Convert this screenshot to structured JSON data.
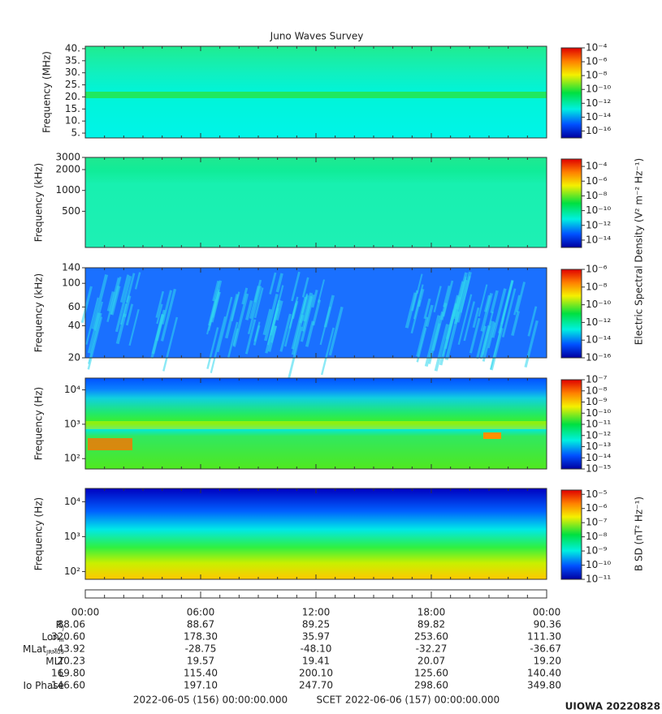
{
  "title": "Juno Waves Survey",
  "chart_data": [
    {
      "type": "heatmap",
      "ylabel": "Frequency (MHz)",
      "yscale": "linear",
      "ylim": [
        3,
        41
      ],
      "yticks": [
        {
          "value": 5,
          "label": "5."
        },
        {
          "value": 10,
          "label": "10."
        },
        {
          "value": 15,
          "label": "15."
        },
        {
          "value": 20,
          "label": "20."
        },
        {
          "value": 25,
          "label": "25."
        },
        {
          "value": 30,
          "label": "30."
        },
        {
          "value": 35,
          "label": "35."
        },
        {
          "value": 40,
          "label": "40."
        }
      ],
      "colorbar": {
        "scale": "log",
        "lim": [
          1e-17,
          0.0001
        ],
        "ticks": [
          {
            "value": 0.0001,
            "label": "10⁻⁴"
          },
          {
            "value": 1e-06,
            "label": "10⁻⁶"
          },
          {
            "value": 1e-08,
            "label": "10⁻⁸"
          },
          {
            "value": 1e-10,
            "label": "10⁻¹⁰"
          },
          {
            "value": 1e-12,
            "label": "10⁻¹²"
          },
          {
            "value": 1e-14,
            "label": "10⁻¹⁴"
          },
          {
            "value": 1e-16,
            "label": "10⁻¹⁶"
          }
        ]
      }
    },
    {
      "type": "heatmap",
      "ylabel": "Frequency (kHz)",
      "yscale": "log",
      "ylim": [
        150,
        3000
      ],
      "yticks": [
        500,
        1000,
        2000,
        3000
      ],
      "colorbar": {
        "scale": "log",
        "lim": [
          1e-15,
          0.001
        ],
        "label": "Electric Spectral Density (V² m⁻² Hz⁻¹)",
        "ticks": [
          {
            "value": 0.0001,
            "label": "10⁻⁴"
          },
          {
            "value": 1e-06,
            "label": "10⁻⁶"
          },
          {
            "value": 1e-08,
            "label": "10⁻⁸"
          },
          {
            "value": 1e-10,
            "label": "10⁻¹⁰"
          },
          {
            "value": 1e-12,
            "label": "10⁻¹²"
          },
          {
            "value": 1e-14,
            "label": "10⁻¹⁴"
          }
        ]
      }
    },
    {
      "type": "heatmap",
      "ylabel": "Frequency (kHz)",
      "yscale": "log",
      "ylim": [
        20,
        140
      ],
      "yticks": [
        20,
        40,
        60,
        100,
        140
      ],
      "colorbar": {
        "scale": "log",
        "lim": [
          1e-16,
          1e-06
        ],
        "ticks": [
          {
            "value": 1e-06,
            "label": "10⁻⁶"
          },
          {
            "value": 1e-08,
            "label": "10⁻⁸"
          },
          {
            "value": 1e-10,
            "label": "10⁻¹⁰"
          },
          {
            "value": 1e-12,
            "label": "10⁻¹²"
          },
          {
            "value": 1e-14,
            "label": "10⁻¹⁴"
          },
          {
            "value": 1e-16,
            "label": "10⁻¹⁶"
          }
        ]
      }
    },
    {
      "type": "heatmap",
      "ylabel": "Frequency (Hz)",
      "yscale": "log",
      "ylim": [
        50,
        22000
      ],
      "yticks": [
        {
          "value": 100,
          "label": "10²"
        },
        {
          "value": 1000,
          "label": "10³"
        },
        {
          "value": 10000,
          "label": "10⁴"
        }
      ],
      "colorbar": {
        "scale": "log",
        "lim": [
          1e-15,
          1e-07
        ],
        "ticks": [
          {
            "value": 1e-07,
            "label": "10⁻⁷"
          },
          {
            "value": 1e-08,
            "label": "10⁻⁸"
          },
          {
            "value": 1e-09,
            "label": "10⁻⁹"
          },
          {
            "value": 1e-10,
            "label": "10⁻¹⁰"
          },
          {
            "value": 1e-11,
            "label": "10⁻¹¹"
          },
          {
            "value": 1e-12,
            "label": "10⁻¹²"
          },
          {
            "value": 1e-13,
            "label": "10⁻¹³"
          },
          {
            "value": 1e-14,
            "label": "10⁻¹⁴"
          },
          {
            "value": 1e-15,
            "label": "10⁻¹⁵"
          }
        ]
      }
    },
    {
      "type": "heatmap",
      "ylabel": "Frequency (Hz)",
      "yscale": "log",
      "ylim": [
        60,
        24000
      ],
      "yticks": [
        {
          "value": 100,
          "label": "10²"
        },
        {
          "value": 1000,
          "label": "10³"
        },
        {
          "value": 10000,
          "label": "10⁴"
        }
      ],
      "colorbar": {
        "scale": "log",
        "lim": [
          1e-11,
          2e-05
        ],
        "label": "B SD (nT² Hz⁻¹)",
        "ticks": [
          {
            "value": 1e-05,
            "label": "10⁻⁵"
          },
          {
            "value": 1e-06,
            "label": "10⁻⁶"
          },
          {
            "value": 1e-07,
            "label": "10⁻⁷"
          },
          {
            "value": 1e-08,
            "label": "10⁻⁸"
          },
          {
            "value": 1e-09,
            "label": "10⁻⁹"
          },
          {
            "value": 1e-10,
            "label": "10⁻¹⁰"
          },
          {
            "value": 1e-11,
            "label": "10⁻¹¹"
          }
        ]
      }
    }
  ],
  "ephemeris": {
    "times": [
      "00:00",
      "06:00",
      "12:00",
      "18:00",
      "00:00"
    ],
    "rows": [
      {
        "label": {
          "main": "R",
          "sub": "J"
        },
        "values": [
          "88.06",
          "88.67",
          "89.25",
          "89.82",
          "90.36"
        ]
      },
      {
        "label": {
          "main": "Lon",
          "sub": "III"
        },
        "values": [
          "320.60",
          "178.30",
          "35.97",
          "253.60",
          "111.30"
        ]
      },
      {
        "label": {
          "main": "MLat",
          "sub": "JRM09"
        },
        "values": [
          "-43.92",
          "-28.75",
          "-48.10",
          "-32.27",
          "-36.67"
        ]
      },
      {
        "label": {
          "main": "MLT"
        },
        "values": [
          "20.23",
          "19.57",
          "19.41",
          "20.07",
          "19.20"
        ]
      },
      {
        "label": {
          "main": "L"
        },
        "values": [
          "169.80",
          "115.40",
          "200.10",
          "125.60",
          "140.40"
        ]
      },
      {
        "label": {
          "main": "Io Phase"
        },
        "values": [
          "146.60",
          "197.10",
          "247.70",
          "298.60",
          "349.80"
        ]
      }
    ]
  },
  "footer": {
    "start": "2022-06-05 (156) 00:00:00.000",
    "frame": "SCET",
    "end": "2022-06-06 (157) 00:00:00.000",
    "stamp": "UIOWA 20220828"
  }
}
